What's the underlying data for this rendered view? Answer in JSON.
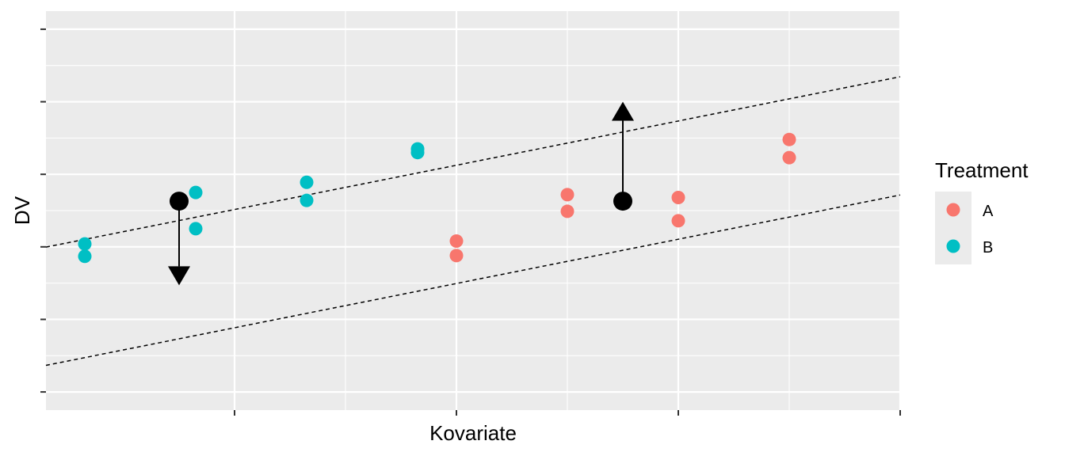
{
  "chart_data": {
    "type": "scatter",
    "title": "",
    "xlabel": "Kovariate",
    "ylabel": "DV",
    "xlim": [
      -0.7,
      7.0
    ],
    "ylim": [
      -0.25,
      5.25
    ],
    "grid": true,
    "legend": {
      "title": "Treatment",
      "position": "right"
    },
    "series": [
      {
        "name": "A",
        "color": "#F8766D",
        "x": [
          3,
          3,
          4,
          4,
          5,
          5,
          6,
          6
        ],
        "y": [
          2.08,
          1.88,
          2.72,
          2.49,
          2.68,
          2.36,
          3.48,
          3.23
        ]
      },
      {
        "name": "B",
        "color": "#00BFC4",
        "x": [
          -0.35,
          -0.35,
          0.65,
          0.65,
          1.65,
          1.65,
          2.65,
          2.65
        ],
        "y": [
          2.04,
          1.87,
          2.75,
          2.25,
          2.89,
          2.64,
          3.35,
          3.3
        ]
      }
    ],
    "regression_lines": [
      {
        "label": "B",
        "intercept": 2.21,
        "slope": 0.305,
        "style": "dashed"
      },
      {
        "label": "A",
        "intercept": 0.58,
        "slope": 0.305,
        "style": "dashed"
      }
    ],
    "adjusted_means": [
      {
        "x": 0.5,
        "y": 2.63,
        "arrow_to": 1.47
      },
      {
        "x": 4.5,
        "y": 2.63,
        "arrow_to": 4.0
      }
    ],
    "x_ticks": [
      1,
      3,
      5,
      7
    ],
    "y_ticks": [
      0,
      1,
      2,
      3,
      4,
      5
    ],
    "point_color": "#000000"
  }
}
